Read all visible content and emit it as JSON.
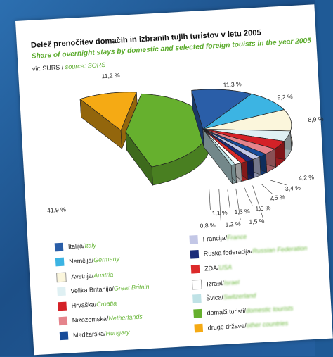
{
  "title": "Delež prenočitev domačih in izbranih tujih turistov v letu 2005",
  "subtitle": "Share of overnight stays by domestic and selected foreign touists in the year 2005",
  "source": {
    "prefix": "vir: SURS / ",
    "en": "source: SORS"
  },
  "chart_data": {
    "type": "pie",
    "title": "Delež prenočitev domačih in izbranih tujih turistov v letu 2005",
    "subtitle": "Share of overnight stays by domestic and selected foreign touists in the year 2005",
    "unit": "%",
    "slices": [
      {
        "name": "Italija / Italy",
        "value": 11.3,
        "label": "11,3 %",
        "color": "#2a5ea8"
      },
      {
        "name": "Nemčija / Germany",
        "value": 9.2,
        "label": "9,2 %",
        "color": "#3cb4e3"
      },
      {
        "name": "Avstrija / Austria",
        "value": 8.9,
        "label": "8,9 %",
        "color": "#fbf6dc"
      },
      {
        "name": "Velika Britanija / Great Britain",
        "value": 4.2,
        "label": "4,2 %",
        "color": "#dff0f3"
      },
      {
        "name": "Hrvaška / Croatia",
        "value": 3.4,
        "label": "3,4 %",
        "color": "#d42127"
      },
      {
        "name": "Nizozemska / Netherlands",
        "value": 2.5,
        "label": "2,5 %",
        "color": "#e5848c"
      },
      {
        "name": "Madžarska / Hungary",
        "value": 1.5,
        "label": "1,5 %",
        "color": "#184c99"
      },
      {
        "name": "Francija / France",
        "value": 1.5,
        "label": "1,5 %",
        "color": "#c3c7e6"
      },
      {
        "name": "Ruska federacija / Russian Federation",
        "value": 1.3,
        "label": "1,3 %",
        "color": "#1b2c7a"
      },
      {
        "name": "ZDA / USA",
        "value": 1.2,
        "label": "1,2 %",
        "color": "#dc2a2a"
      },
      {
        "name": "Izrael / Israel",
        "value": 1.1,
        "label": "1,1 %",
        "color": "#ffffff"
      },
      {
        "name": "Švica / Switzerland",
        "value": 0.8,
        "label": "0,8 %",
        "color": "#bfe2e6"
      },
      {
        "name": "domači turisti / domestic tourists",
        "value": 41.9,
        "label": "41,9 %",
        "color": "#66b02e"
      },
      {
        "name": "druge države / other countries",
        "value": 11.2,
        "label": "11,2 %",
        "color": "#f5aa14"
      }
    ]
  },
  "legend": {
    "left": [
      {
        "sl": "Italija",
        "en": "Italy",
        "color": "#2a5ea8"
      },
      {
        "sl": "Nemčija",
        "en": "Germany",
        "color": "#3cb4e3"
      },
      {
        "sl": "Avstrija",
        "en": "Austria",
        "color": "#fbf6dc"
      },
      {
        "sl": "Velika Britanija",
        "en": "Great Britain",
        "color": "#dff0f3"
      },
      {
        "sl": "Hrvaška",
        "en": "Croatia",
        "color": "#d42127"
      },
      {
        "sl": "Nizozemska",
        "en": "Netherlands",
        "color": "#e5848c"
      },
      {
        "sl": "Madžarska",
        "en": "Hungary",
        "color": "#184c99"
      }
    ],
    "right": [
      {
        "sl": "Francija",
        "en": "France",
        "color": "#c3c7e6"
      },
      {
        "sl": "Ruska federacija",
        "en": "Russian Federation",
        "color": "#1b2c7a"
      },
      {
        "sl": "ZDA",
        "en": "USA",
        "color": "#dc2a2a"
      },
      {
        "sl": "Izrael",
        "en": "Israel",
        "color": "#ffffff"
      },
      {
        "sl": "Švica",
        "en": "Switzerland",
        "color": "#bfe2e6"
      },
      {
        "sl": "domači turisti",
        "en": "domestic tourists",
        "color": "#66b02e"
      },
      {
        "sl": "druge države",
        "en": "other countries",
        "color": "#f5aa14"
      }
    ]
  }
}
